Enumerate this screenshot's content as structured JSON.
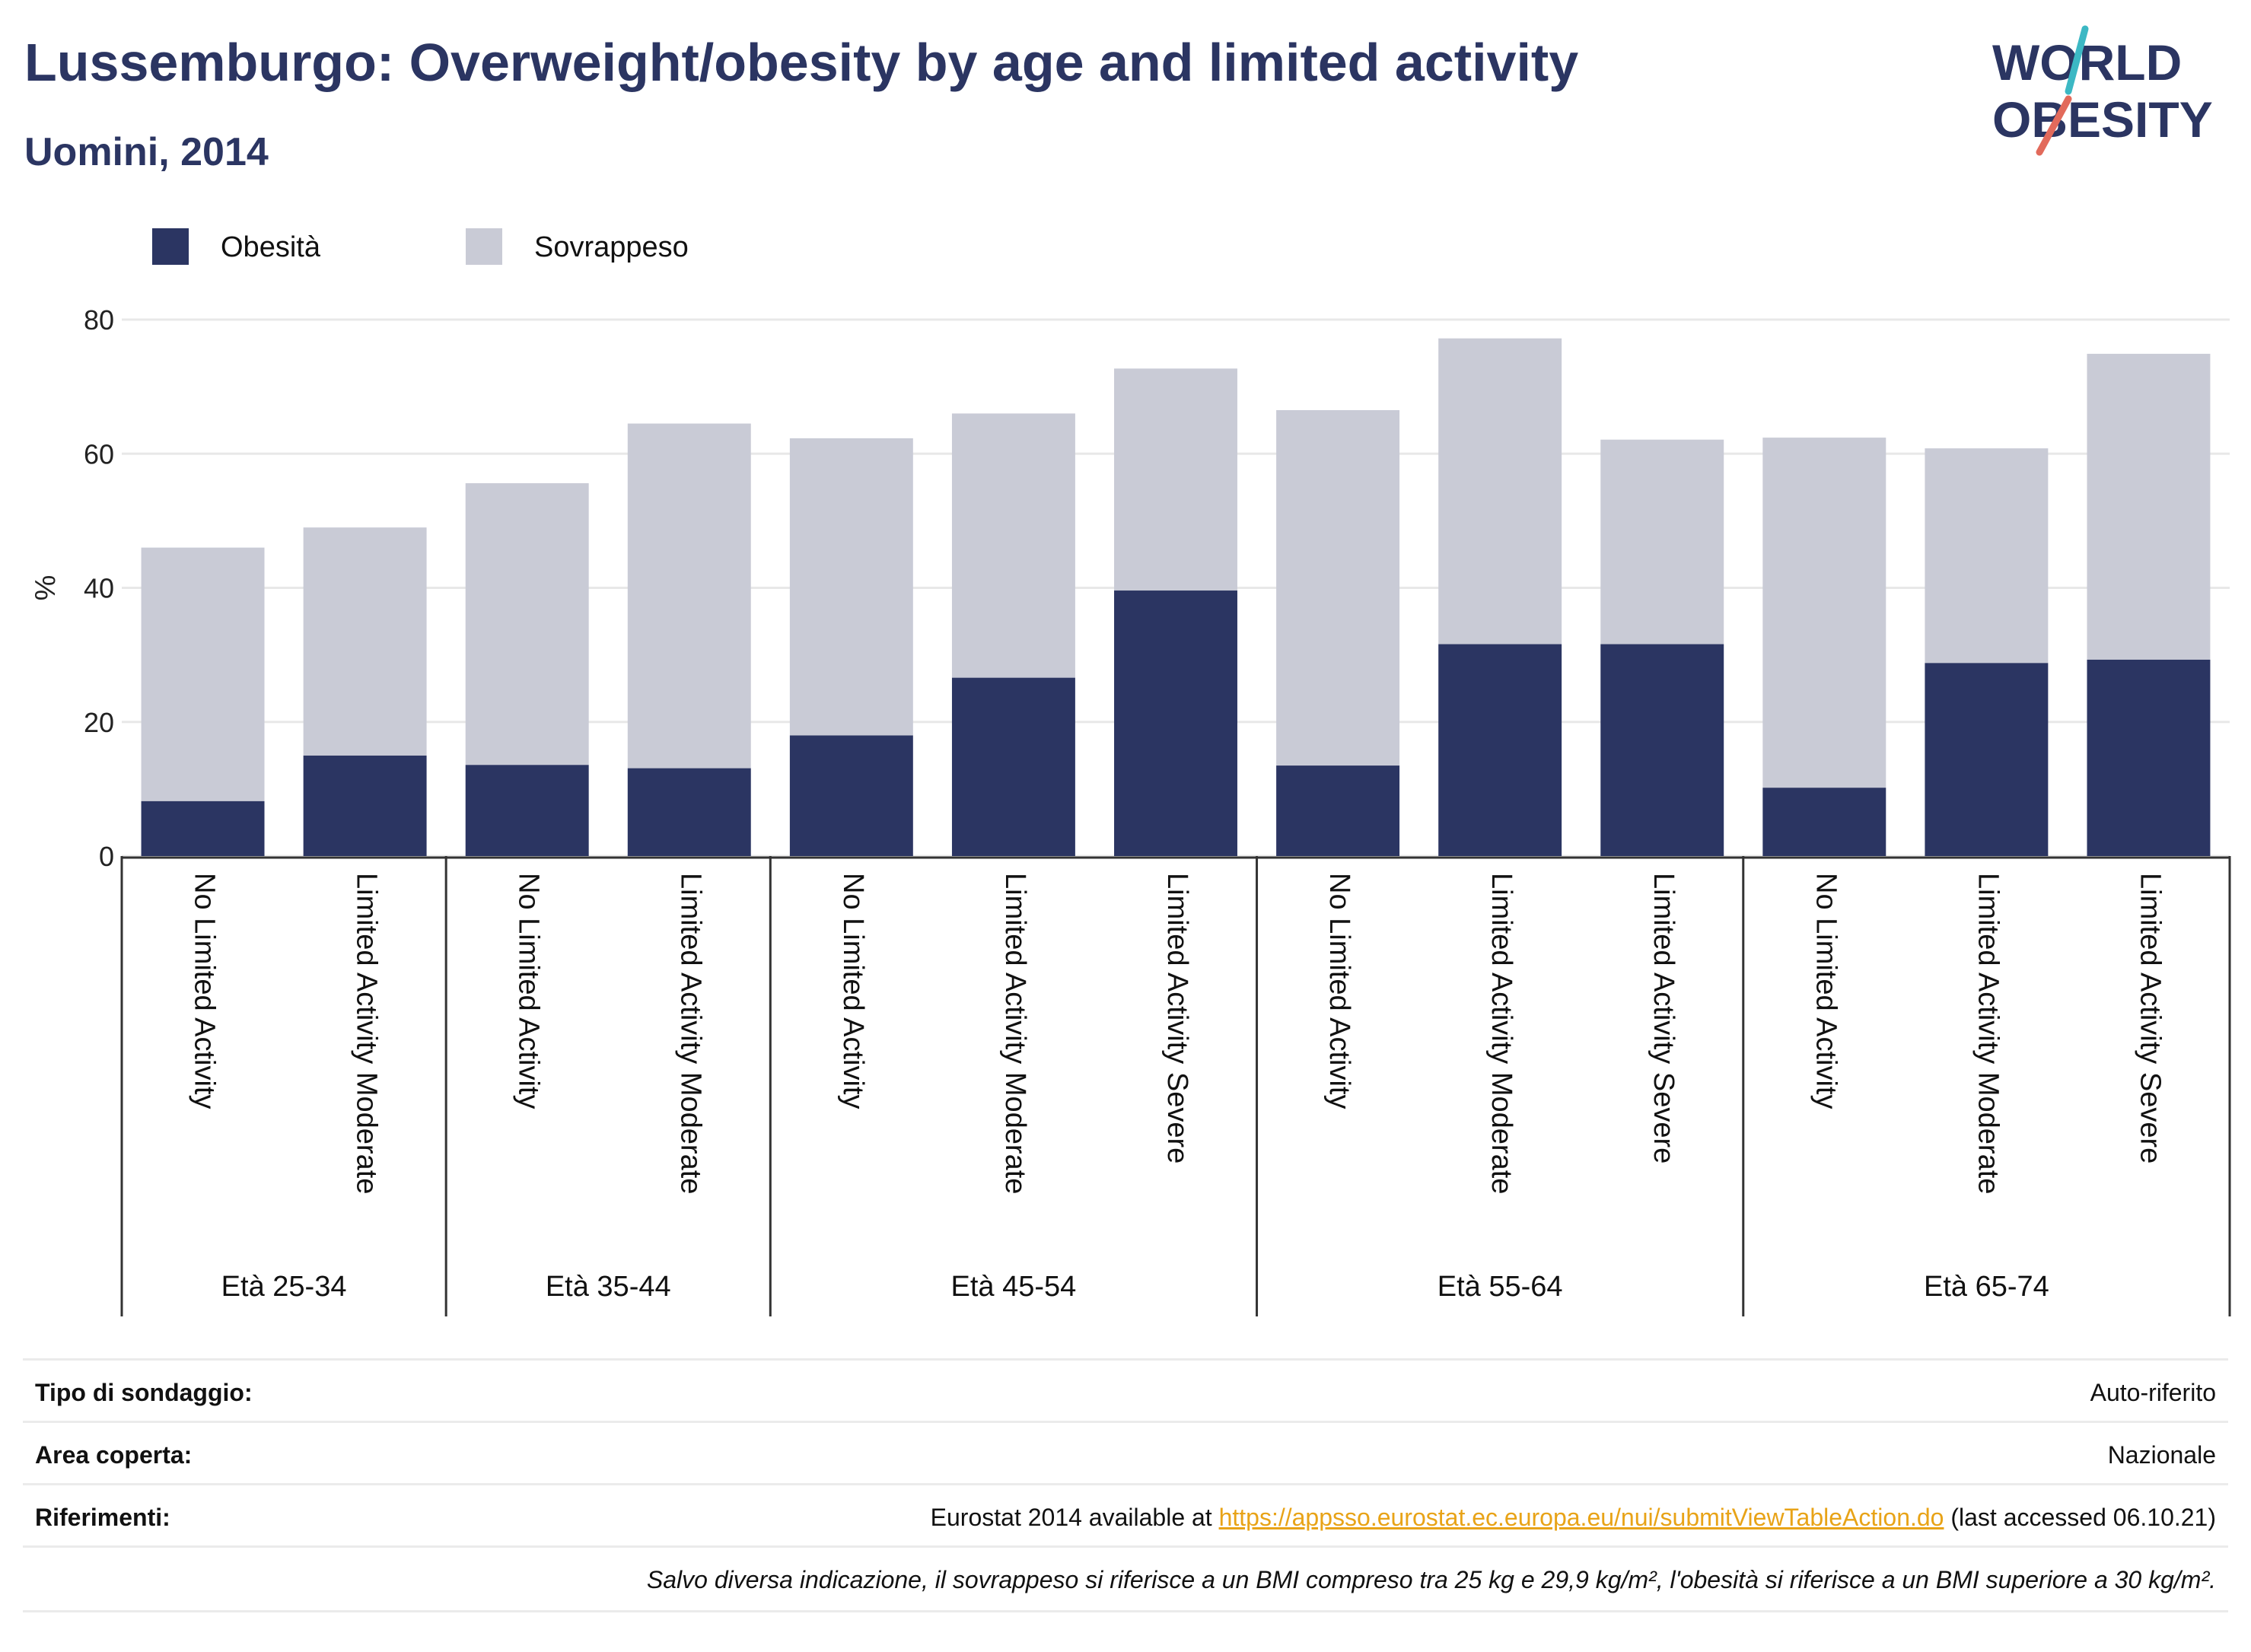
{
  "title": "Lussemburgo: Overweight/obesity by age and limited activity",
  "subtitle": "Uomini, 2014",
  "logo": {
    "line1": "WORLD",
    "line2": "OBESITY"
  },
  "legend": [
    {
      "label": "Obesità",
      "color": "#2b3562"
    },
    {
      "label": "Sovrappeso",
      "color": "#c9cbd6"
    }
  ],
  "chart_data": {
    "type": "bar",
    "stacked": true,
    "ylabel": "%",
    "ylim": [
      0,
      80
    ],
    "yticks": [
      0,
      20,
      40,
      60,
      80
    ],
    "grid": true,
    "legend_position": "top-left",
    "groups": [
      {
        "label": "Età 25-34",
        "categories": [
          "No Limited Activity",
          "Limited Activity Moderate"
        ]
      },
      {
        "label": "Età 35-44",
        "categories": [
          "No Limited Activity",
          "Limited Activity Moderate"
        ]
      },
      {
        "label": "Età 45-54",
        "categories": [
          "No Limited Activity",
          "Limited Activity Moderate",
          "Limited Activity Severe"
        ]
      },
      {
        "label": "Età 55-64",
        "categories": [
          "No Limited Activity",
          "Limited Activity Moderate",
          "Limited Activity Severe"
        ]
      },
      {
        "label": "Età 65-74",
        "categories": [
          "No Limited Activity",
          "Limited Activity Moderate",
          "Limited Activity Severe"
        ]
      }
    ],
    "series": [
      {
        "name": "Obesità",
        "color": "#2b3562",
        "values": [
          8.2,
          15.0,
          13.6,
          13.1,
          18.0,
          26.6,
          39.6,
          13.5,
          31.6,
          31.6,
          10.2,
          28.8,
          29.3
        ]
      },
      {
        "name": "Sovrappeso",
        "color": "#c9cbd6",
        "values": [
          37.8,
          34.0,
          42.0,
          51.4,
          44.3,
          39.4,
          33.1,
          53.0,
          45.6,
          30.5,
          52.2,
          32.0,
          45.6
        ]
      }
    ]
  },
  "info": {
    "rows": [
      {
        "key": "Tipo di sondaggio:",
        "value": "Auto-riferito"
      },
      {
        "key": "Area coperta:",
        "value": "Nazionale"
      },
      {
        "key": "Riferimenti:",
        "value_prefix": "Eurostat 2014 available at ",
        "link": "https://appsso.eurostat.ec.europa.eu/nui/submitViewTableAction.do",
        "value_suffix": " (last accessed 06.10.21)"
      }
    ],
    "note": "Salvo diversa indicazione, il sovrappeso si riferisce a un BMI compreso tra 25 kg e 29,9 kg/m², l'obesità si riferisce a un BMI superiore a 30 kg/m²."
  }
}
